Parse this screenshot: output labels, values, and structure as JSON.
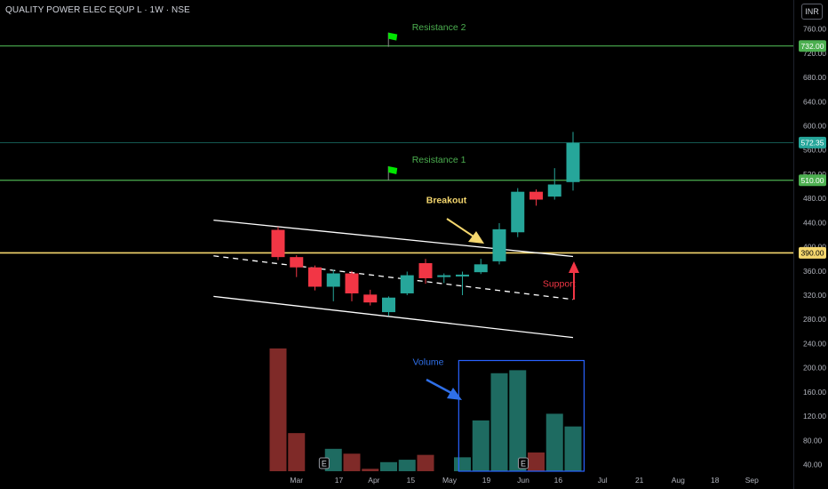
{
  "header": {
    "symbol_title": "QUALITY POWER ELEC EQUP L · 1W · NSE",
    "currency": "INR"
  },
  "colors": {
    "up": "#26a69a",
    "down": "#f23645",
    "vol_up": "#1e6b61",
    "vol_down": "#7f2a28",
    "resistance": "#4caf50",
    "support_line": "#f5d76e",
    "channel": "#ffffff",
    "breakout_arrow": "#f5d76e",
    "support_arrow": "#f23645",
    "volume_box": "#2962ff",
    "volume_arrow": "#2f6fe8",
    "flag": "#00e600"
  },
  "chart_data": {
    "type": "candlestick",
    "y_axis": {
      "ylim": [
        29,
        808
      ],
      "ticks": [
        760,
        720,
        680,
        640,
        600,
        560,
        520,
        480,
        440,
        400,
        360,
        320,
        280,
        240,
        200,
        160,
        120,
        80,
        40
      ],
      "tick_labels": [
        "760.00",
        "720.00",
        "680.00",
        "640.00",
        "600.00",
        "560.00",
        "520.00",
        "480.00",
        "440.00",
        "400.00",
        "360.00",
        "320.00",
        "280.00",
        "240.00",
        "200.00",
        "160.00",
        "120.00",
        "80.00",
        "40.00"
      ],
      "price_labels": [
        {
          "value": 732,
          "text": "732.00",
          "color": "#4caf50"
        },
        {
          "value": 572.35,
          "text": "572.35",
          "color": "#26a69a"
        },
        {
          "value": 510,
          "text": "510.00",
          "color": "#4caf50"
        },
        {
          "value": 390,
          "text": "390.00",
          "color": "#f5d76e"
        }
      ]
    },
    "x_axis": {
      "tick_labels": [
        "Mar",
        "17",
        "Apr",
        "15",
        "May",
        "19",
        "Jun",
        "16",
        "Jul",
        "21",
        "Aug",
        "18",
        "Sep"
      ],
      "tick_index": [
        1,
        3.3,
        5.2,
        7.2,
        9.3,
        11.3,
        13.3,
        15.2,
        17.6,
        19.6,
        21.7,
        23.7,
        25.7
      ]
    },
    "candles": [
      {
        "o": 428,
        "h": 433,
        "l": 378,
        "c": 383
      },
      {
        "o": 383,
        "h": 386,
        "l": 350,
        "c": 366
      },
      {
        "o": 366,
        "h": 369,
        "l": 328,
        "c": 334
      },
      {
        "o": 334,
        "h": 362,
        "l": 310,
        "c": 356
      },
      {
        "o": 356,
        "h": 360,
        "l": 310,
        "c": 323
      },
      {
        "o": 321,
        "h": 329,
        "l": 303,
        "c": 308
      },
      {
        "o": 292,
        "h": 318,
        "l": 286,
        "c": 316
      },
      {
        "o": 323,
        "h": 359,
        "l": 320,
        "c": 353
      },
      {
        "o": 373,
        "h": 380,
        "l": 339,
        "c": 348
      },
      {
        "o": 350,
        "h": 356,
        "l": 340,
        "c": 353
      },
      {
        "o": 351,
        "h": 359,
        "l": 320,
        "c": 354
      },
      {
        "o": 358,
        "h": 380,
        "l": 355,
        "c": 371
      },
      {
        "o": 376,
        "h": 439,
        "l": 371,
        "c": 429
      },
      {
        "o": 424,
        "h": 497,
        "l": 416,
        "c": 491
      },
      {
        "o": 491,
        "h": 495,
        "l": 468,
        "c": 478
      },
      {
        "o": 483,
        "h": 530,
        "l": 478,
        "c": 503
      },
      {
        "o": 507,
        "h": 590,
        "l": 493,
        "c": 572
      }
    ],
    "volume": {
      "values": [
        232,
        92,
        25,
        66,
        58,
        33,
        44,
        48,
        56,
        24,
        52,
        113,
        191,
        196,
        60,
        124,
        103
      ],
      "direction": [
        "down",
        "down",
        "down",
        "up",
        "down",
        "down",
        "up",
        "up",
        "down",
        "up",
        "up",
        "up",
        "up",
        "up",
        "down",
        "up",
        "up"
      ],
      "ylim": [
        29,
        808
      ]
    },
    "earnings_markers": [
      {
        "index": 2.5,
        "label": "E"
      },
      {
        "index": 13.3,
        "label": "E"
      }
    ],
    "horizontal_levels": [
      {
        "value": 732,
        "role": "resistance"
      },
      {
        "value": 510,
        "role": "resistance"
      },
      {
        "value": 390,
        "role": "support"
      }
    ],
    "channel_lines": [
      {
        "from": {
          "i": -3.5,
          "v": 444
        },
        "to": {
          "i": 16.0,
          "v": 384
        },
        "style": "solid"
      },
      {
        "from": {
          "i": -3.5,
          "v": 385
        },
        "to": {
          "i": 16.0,
          "v": 313
        },
        "style": "dashed"
      },
      {
        "from": {
          "i": -3.5,
          "v": 318
        },
        "to": {
          "i": 16.0,
          "v": 250
        },
        "style": "solid"
      }
    ],
    "annotations": [
      {
        "text": "Resistance 2",
        "i": 6.3,
        "v": 752,
        "flag_i": 6.3,
        "flag_v": 735
      },
      {
        "text": "Resistance 1",
        "i": 6.3,
        "v": 533,
        "flag_i": 6.3,
        "flag_v": 514
      },
      {
        "text": "Breakout",
        "i": 9.0,
        "v": 478
      },
      {
        "text": "Support",
        "i": 15.8,
        "v": 346
      },
      {
        "text": "Volume",
        "i": 7.3,
        "v": 212
      }
    ]
  }
}
